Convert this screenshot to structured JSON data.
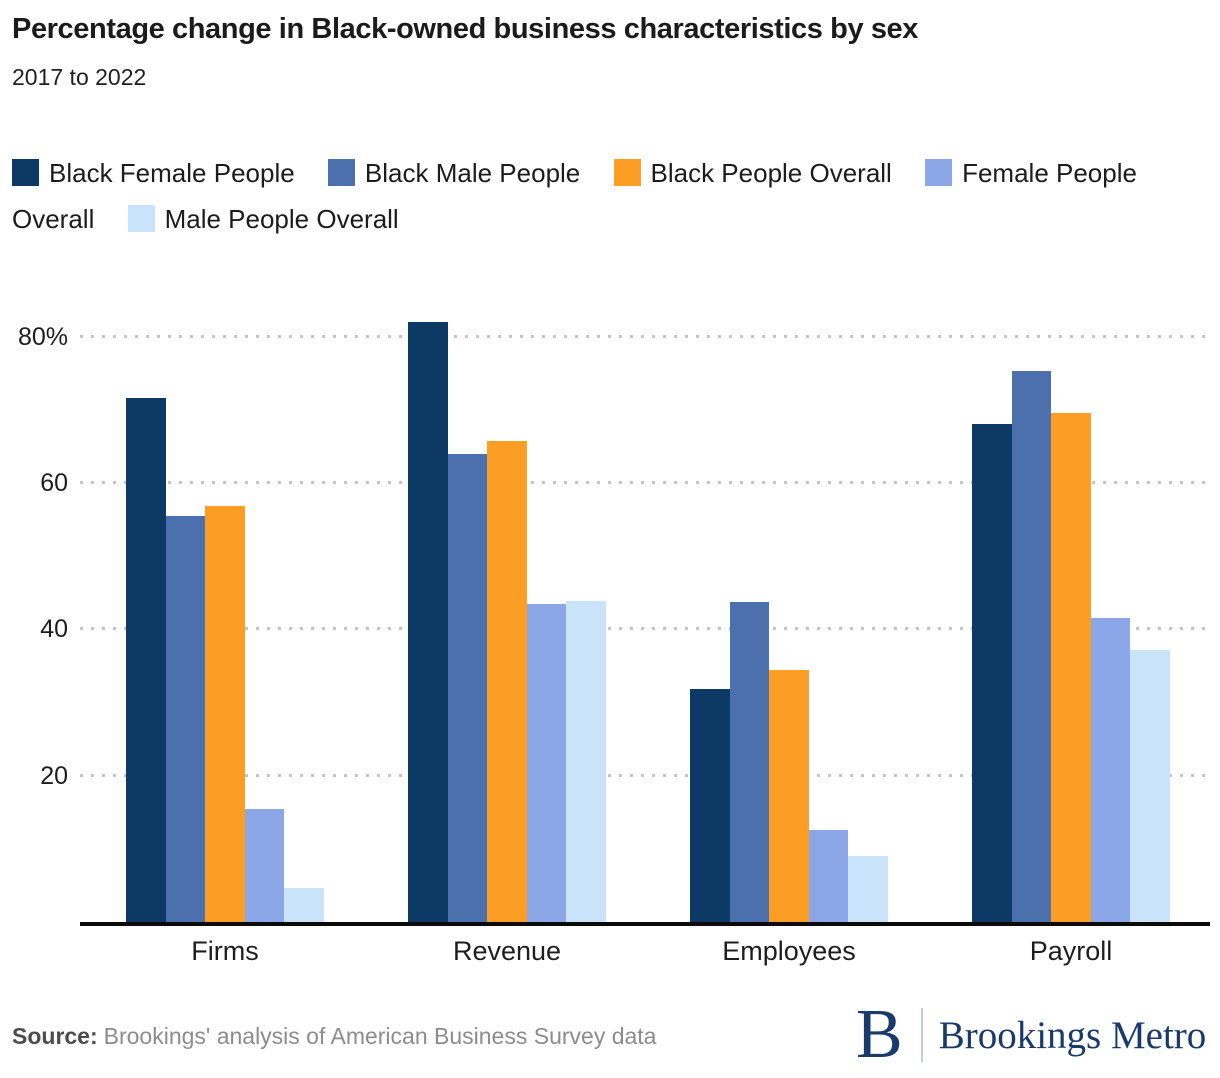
{
  "header": {
    "title": "Percentage change in Black-owned business characteristics by sex",
    "subtitle": "2017 to 2022"
  },
  "chart_data": {
    "type": "bar",
    "title": "Percentage change in Black-owned business characteristics by sex",
    "subtitle": "2017 to 2022",
    "categories": [
      "Firms",
      "Revenue",
      "Employees",
      "Payroll"
    ],
    "series": [
      {
        "name": "Black Female People",
        "color": "#0d3a65",
        "values": [
          71.6,
          82.0,
          31.9,
          68.0
        ]
      },
      {
        "name": "Black Male People",
        "color": "#4c6fae",
        "values": [
          55.5,
          64.0,
          43.7,
          75.3
        ]
      },
      {
        "name": "Black People Overall",
        "color": "#fc9e24",
        "values": [
          56.9,
          65.8,
          34.5,
          69.5
        ]
      },
      {
        "name": "Female People Overall",
        "color": "#8ba7e7",
        "values": [
          15.4,
          43.5,
          12.6,
          41.6
        ]
      },
      {
        "name": "Male People Overall",
        "color": "#c9e3fa",
        "values": [
          4.6,
          43.9,
          9.0,
          37.2
        ]
      }
    ],
    "xlabel": "",
    "ylabel": "",
    "y_ticks": [
      20,
      40,
      60,
      80
    ],
    "y_tick_labels": [
      "20",
      "40",
      "60",
      "80%"
    ],
    "ylim": [
      0,
      82
    ],
    "grid": "horizontal-dotted",
    "legend_position": "top"
  },
  "footer": {
    "source_label": "Source:",
    "source_text": "Brookings' analysis of American Business Survey data",
    "logo_letter": "B",
    "logo_text": "Brookings Metro"
  }
}
